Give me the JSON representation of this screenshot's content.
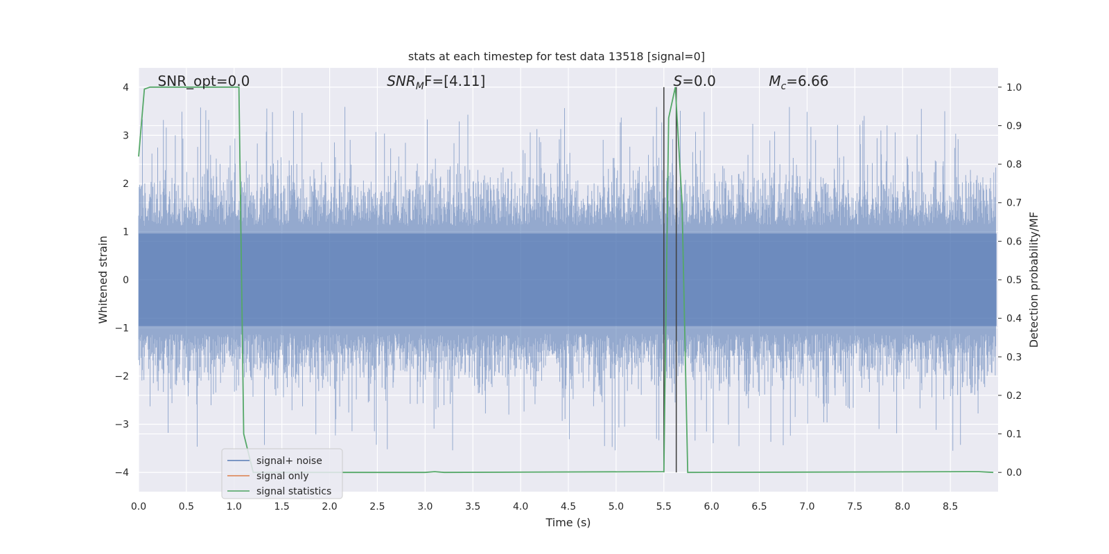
{
  "chart_data": {
    "type": "line",
    "title": "stats at each timestep for test data 13518 [signal=0]",
    "xlabel": "Time (s)",
    "ylabel": "Whitened strain",
    "ylabel_right": "Detection probability/MF",
    "xlim": [
      0.0,
      9.0
    ],
    "ylim": [
      -4.4,
      4.4
    ],
    "ylim_right": [
      -0.05,
      1.05
    ],
    "x_ticks": [
      "0.0",
      "0.5",
      "1.0",
      "1.5",
      "2.0",
      "2.5",
      "3.0",
      "3.5",
      "4.0",
      "4.5",
      "5.0",
      "5.5",
      "6.0",
      "6.5",
      "7.0",
      "7.5",
      "8.0",
      "8.5"
    ],
    "y_ticks": [
      "4",
      "3",
      "2",
      "1",
      "0",
      "−1",
      "−2",
      "−3",
      "−4"
    ],
    "y_ticks_right": [
      "1.0",
      "0.9",
      "0.8",
      "0.7",
      "0.6",
      "0.5",
      "0.4",
      "0.3",
      "0.2",
      "0.1",
      "0.0"
    ],
    "grid": true,
    "legend_position": "lower-left",
    "annotations": [
      {
        "prefix": "SNR_opt=0.0",
        "sub": "",
        "suffix": "",
        "italic": false,
        "x": 0.2
      },
      {
        "prefix": "SNR",
        "sub": "M",
        "suffix": "F=[4.11]",
        "italic": true,
        "x": 2.6
      },
      {
        "prefix": "S",
        "sub": "",
        "suffix": "=0.0",
        "italic": true,
        "x": 5.6
      },
      {
        "prefix": "M",
        "sub": "c",
        "suffix": "=6.66",
        "italic": true,
        "x": 6.6
      }
    ],
    "series": [
      {
        "name": "signal+ noise",
        "color": "#4c72b0",
        "axis": "left",
        "description": "whitened noise envelope",
        "envelope": {
          "core_amplitude": 1.6,
          "peak_highs": [
            3.2,
            3.5,
            4.0,
            3.9,
            3.8,
            3.4,
            3.9
          ],
          "peak_lows": [
            -3.3,
            -3.6,
            -3.9,
            -3.2,
            -3.6
          ]
        }
      },
      {
        "name": "signal only",
        "color": "#dd8452",
        "axis": "left",
        "values": []
      },
      {
        "name": "signal statistics",
        "color": "#55a868",
        "axis": "right",
        "x": [
          0.0,
          0.06,
          0.12,
          0.6,
          1.0,
          1.05,
          1.1,
          1.2,
          1.5,
          3.0,
          3.1,
          3.2,
          5.5,
          5.51,
          5.55,
          5.62,
          5.69,
          5.75,
          8.8,
          8.95
        ],
        "values": [
          0.82,
          0.995,
          1.0,
          1.0,
          1.0,
          1.0,
          0.1,
          0.0,
          0.0,
          0.0,
          0.002,
          0.0,
          0.002,
          0.2,
          0.92,
          1.0,
          0.7,
          0.0,
          0.002,
          0.0
        ]
      }
    ],
    "vertical_lines": [
      {
        "x": 5.5,
        "color": "#444444",
        "y_from": -4.0,
        "y_to": 4.0
      },
      {
        "x": 5.63,
        "color": "#444444",
        "y_from": -4.0,
        "y_to": 4.0
      }
    ]
  }
}
